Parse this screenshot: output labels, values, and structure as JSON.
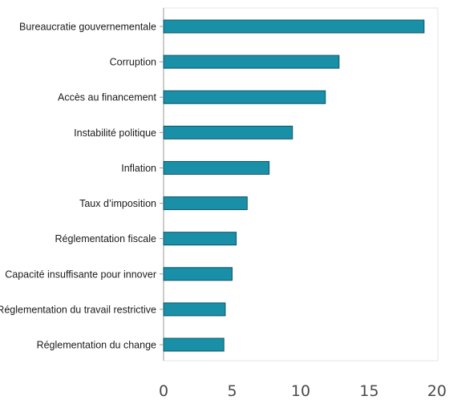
{
  "chart_data": {
    "type": "bar",
    "orientation": "horizontal",
    "categories": [
      "Bureaucratie gouvernementale",
      "Corruption",
      "Accès au financement",
      "Instabilité politique",
      "Inflation",
      "Taux d’imposition",
      "Réglementation fiscale",
      "Capacité insuffisante pour innover",
      "Réglementation du travail restrictive",
      "Réglementation du change"
    ],
    "values": [
      19.0,
      12.8,
      11.8,
      9.4,
      7.7,
      6.1,
      5.3,
      5.0,
      4.5,
      4.4
    ],
    "xlim": [
      0,
      20
    ],
    "xticks": [
      0,
      5,
      10,
      15,
      20
    ],
    "title": "",
    "xlabel": "",
    "ylabel": "",
    "grid": false,
    "bar_color": "#1a8fa8",
    "bar_edge_color": "#0c5566"
  }
}
